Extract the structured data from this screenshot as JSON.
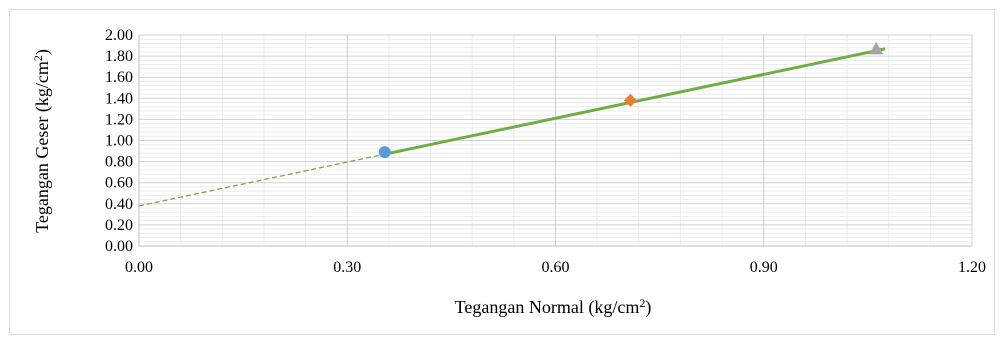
{
  "chart_data": {
    "type": "scatter",
    "title": "",
    "xlabel": "Tegangan Normal (kg/cm",
    "xlabel_sup": "2",
    "xlabel_end": ")",
    "ylabel": "Tegangan Geser (kg/cm",
    "ylabel_sup": "2",
    "ylabel_end": ")",
    "xlim": [
      0,
      1.2
    ],
    "ylim": [
      0,
      2.0
    ],
    "x_ticks": [
      "0.00",
      "0.30",
      "0.60",
      "0.90",
      "1.20"
    ],
    "y_ticks": [
      "0.00",
      "0.20",
      "0.40",
      "0.60",
      "0.80",
      "1.00",
      "1.20",
      "1.40",
      "1.60",
      "1.80",
      "2.00"
    ],
    "grid": true,
    "points": [
      {
        "x": 0.354,
        "y": 0.89,
        "marker": "circle",
        "color": "#5b9bd5"
      },
      {
        "x": 0.708,
        "y": 1.38,
        "marker": "diamond",
        "color": "#ed7d31"
      },
      {
        "x": 1.062,
        "y": 1.87,
        "marker": "triangle",
        "color": "#a5a5a5"
      }
    ],
    "trendline": {
      "intercept": 0.38,
      "slope": 1.385,
      "x_start": 0.354,
      "x_end": 1.075,
      "color": "#70ad47"
    },
    "extrapolation": {
      "x_start": 0.0,
      "x_end": 0.354,
      "color": "#70ad47",
      "style": "dashed"
    }
  }
}
